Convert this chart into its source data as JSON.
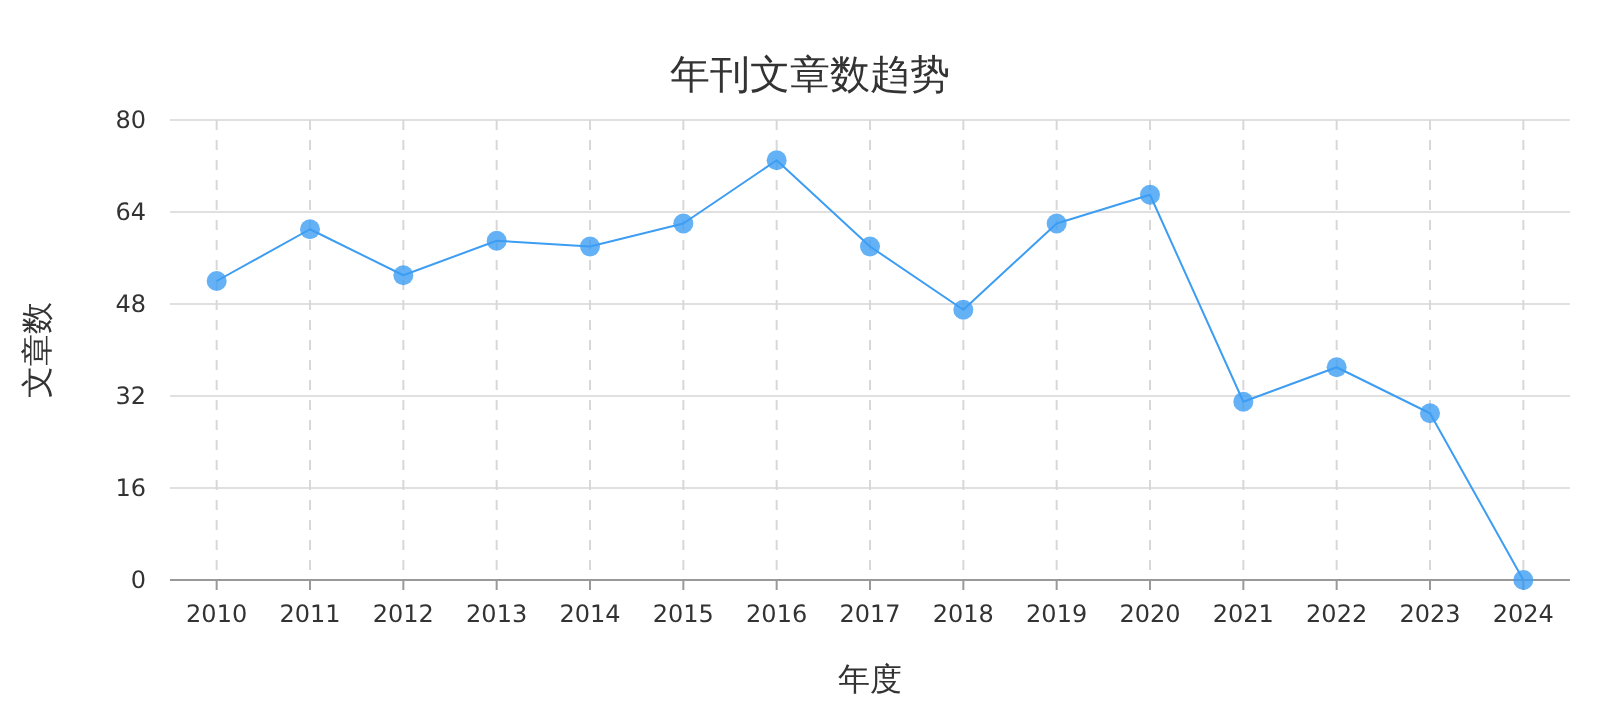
{
  "chart_data": {
    "type": "line",
    "title": "年刊文章数趋势",
    "xlabel": "年度",
    "ylabel": "文章数",
    "categories": [
      "2010",
      "2011",
      "2012",
      "2013",
      "2014",
      "2015",
      "2016",
      "2017",
      "2018",
      "2019",
      "2020",
      "2021",
      "2022",
      "2023",
      "2024"
    ],
    "series": [
      {
        "color": "#3d9df2",
        "values": [
          52,
          61,
          53,
          59,
          58,
          62,
          73,
          58,
          47,
          62,
          67,
          31,
          37,
          29,
          0
        ]
      }
    ],
    "ylim": [
      0,
      80
    ],
    "yticks": [
      0,
      16,
      32,
      48,
      64,
      80
    ],
    "grid": true,
    "marker": "circle",
    "line_style": "solid"
  }
}
